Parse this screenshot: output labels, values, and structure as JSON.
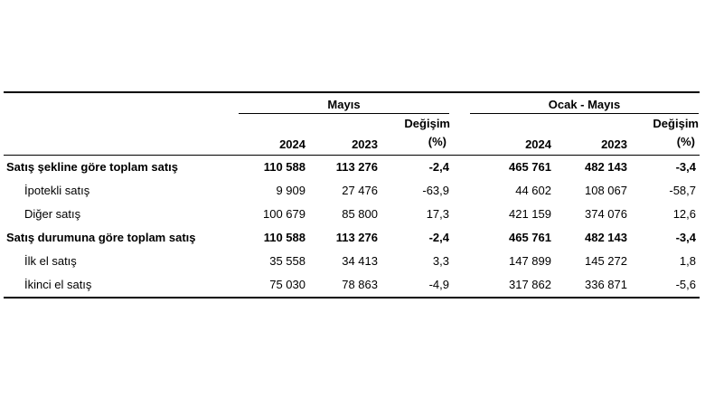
{
  "header": {
    "group1": "Mayıs",
    "group2": "Ocak - Mayıs",
    "col_2024": "2024",
    "col_2023": "2023",
    "change_line1": "Değişim",
    "change_line2": "(%)"
  },
  "rows": [
    {
      "label": "Satış şekline göre toplam satış",
      "bold": true,
      "m2024": "110 588",
      "m2023": "113 276",
      "mchg": "-2,4",
      "c2024": "465 761",
      "c2023": "482 143",
      "cchg": "-3,4"
    },
    {
      "label": "İpotekli satış",
      "bold": false,
      "m2024": "9 909",
      "m2023": "27 476",
      "mchg": "-63,9",
      "c2024": "44 602",
      "c2023": "108 067",
      "cchg": "-58,7"
    },
    {
      "label": "Diğer satış",
      "bold": false,
      "m2024": "100 679",
      "m2023": "85 800",
      "mchg": "17,3",
      "c2024": "421 159",
      "c2023": "374 076",
      "cchg": "12,6"
    },
    {
      "label": "Satış durumuna göre toplam satış",
      "bold": true,
      "m2024": "110 588",
      "m2023": "113 276",
      "mchg": "-2,4",
      "c2024": "465 761",
      "c2023": "482 143",
      "cchg": "-3,4"
    },
    {
      "label": "İlk el satış",
      "bold": false,
      "m2024": "35 558",
      "m2023": "34 413",
      "mchg": "3,3",
      "c2024": "147 899",
      "c2023": "145 272",
      "cchg": "1,8"
    },
    {
      "label": "İkinci el satış",
      "bold": false,
      "m2024": "75 030",
      "m2023": "78 863",
      "mchg": "-4,9",
      "c2024": "317 862",
      "c2023": "336 871",
      "cchg": "-5,6"
    }
  ]
}
